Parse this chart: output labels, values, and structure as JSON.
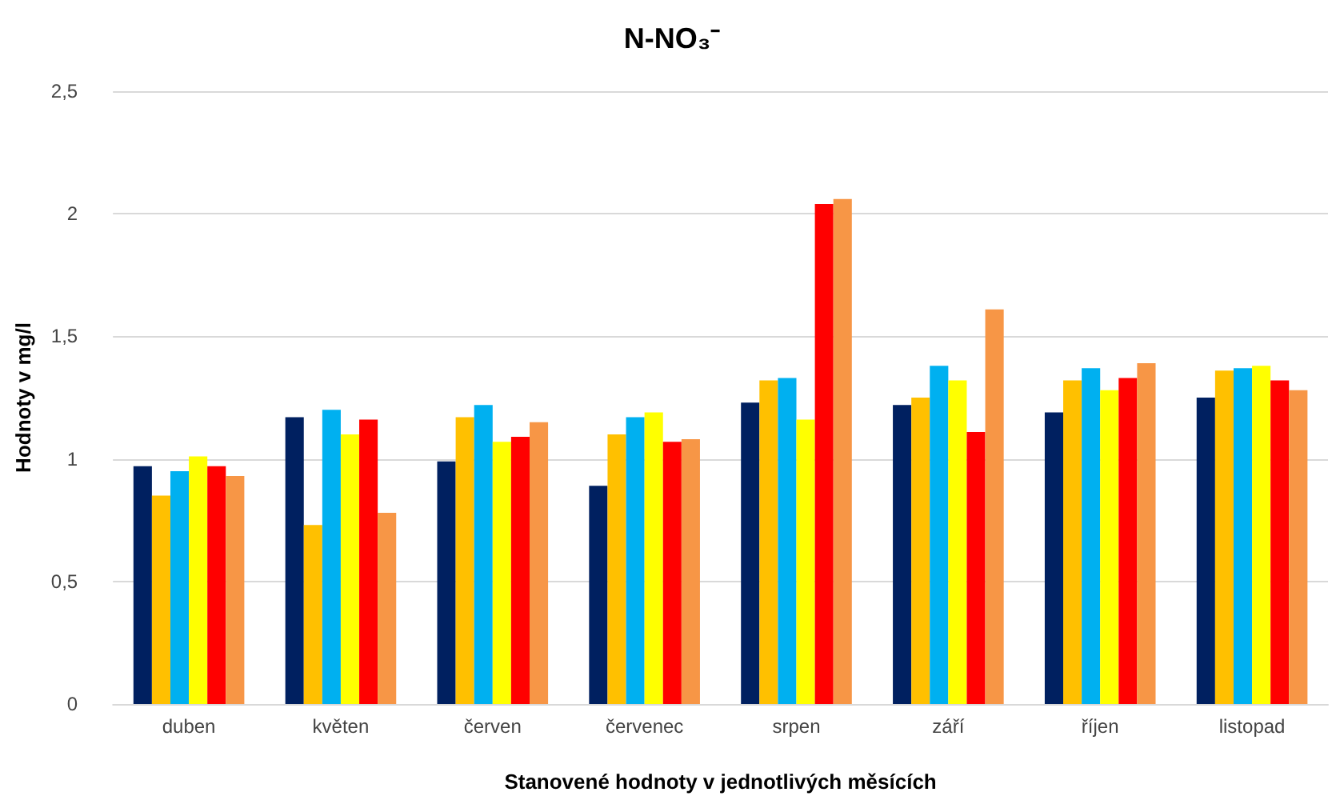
{
  "chart_data": {
    "type": "bar",
    "title": "N-NO₃⁻",
    "xlabel": "Stanovené hodnoty v jednotlivých měsících",
    "ylabel": "Hodnoty v mg/l",
    "categories": [
      "duben",
      "květen",
      "červen",
      "červenec",
      "srpen",
      "září",
      "říjen",
      "listopad"
    ],
    "series": [
      {
        "color": "#002060",
        "values": [
          0.97,
          1.17,
          0.99,
          0.89,
          1.23,
          1.22,
          1.19,
          1.25
        ]
      },
      {
        "color": "#ffc000",
        "values": [
          0.85,
          0.73,
          1.17,
          1.1,
          1.32,
          1.25,
          1.32,
          1.36
        ]
      },
      {
        "color": "#00b0f0",
        "values": [
          0.95,
          1.2,
          1.22,
          1.17,
          1.33,
          1.38,
          1.37,
          1.37
        ]
      },
      {
        "color": "#ffff00",
        "values": [
          1.01,
          1.1,
          1.07,
          1.19,
          1.16,
          1.32,
          1.28,
          1.38
        ]
      },
      {
        "color": "#ff0000",
        "values": [
          0.97,
          1.16,
          1.09,
          1.07,
          2.04,
          1.11,
          1.33,
          1.32
        ]
      },
      {
        "color": "#f79646",
        "values": [
          0.93,
          0.78,
          1.15,
          1.08,
          2.06,
          1.61,
          1.39,
          1.28
        ]
      }
    ],
    "ylim": [
      0,
      2.5
    ],
    "yticks": [
      {
        "value": 0,
        "label": "0"
      },
      {
        "value": 0.5,
        "label": "0,5"
      },
      {
        "value": 1,
        "label": "1"
      },
      {
        "value": 1.5,
        "label": "1,5"
      },
      {
        "value": 2,
        "label": "2"
      },
      {
        "value": 2.5,
        "label": "2,5"
      }
    ],
    "grid": "y"
  }
}
